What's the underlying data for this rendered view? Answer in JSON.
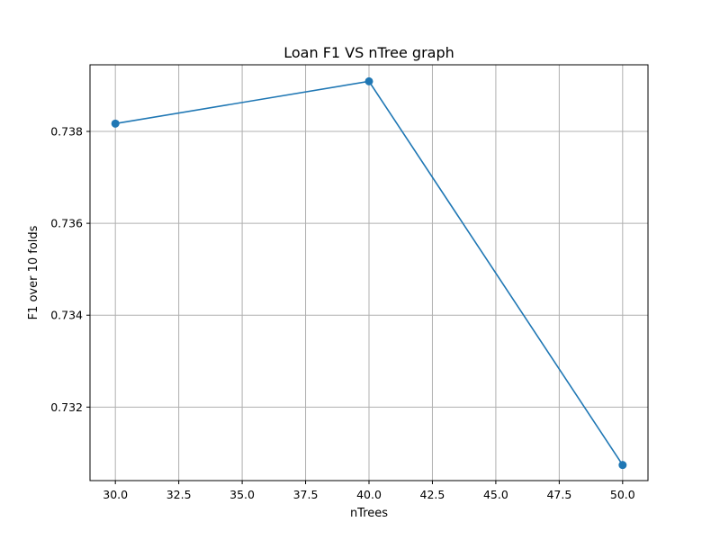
{
  "chart_data": {
    "type": "line",
    "title": "Loan F1 VS nTree graph",
    "xlabel": "nTrees",
    "ylabel": "F1 over 10 folds",
    "xlim": [
      29.0,
      51.0
    ],
    "ylim": [
      0.7304,
      0.73945
    ],
    "x_ticks": [
      30.0,
      32.5,
      35.0,
      37.5,
      40.0,
      42.5,
      45.0,
      47.5,
      50.0
    ],
    "x_tick_labels": [
      "30.0",
      "32.5",
      "35.0",
      "37.5",
      "40.0",
      "42.5",
      "45.0",
      "47.5",
      "50.0"
    ],
    "y_ticks": [
      0.732,
      0.734,
      0.736,
      0.738
    ],
    "y_tick_labels": [
      "0.732",
      "0.734",
      "0.736",
      "0.738"
    ],
    "grid": true,
    "series": [
      {
        "x": [
          30,
          40,
          50
        ],
        "y": [
          0.73817,
          0.73909,
          0.73074
        ],
        "color": "#1f77b4",
        "marker": "circle"
      }
    ]
  }
}
